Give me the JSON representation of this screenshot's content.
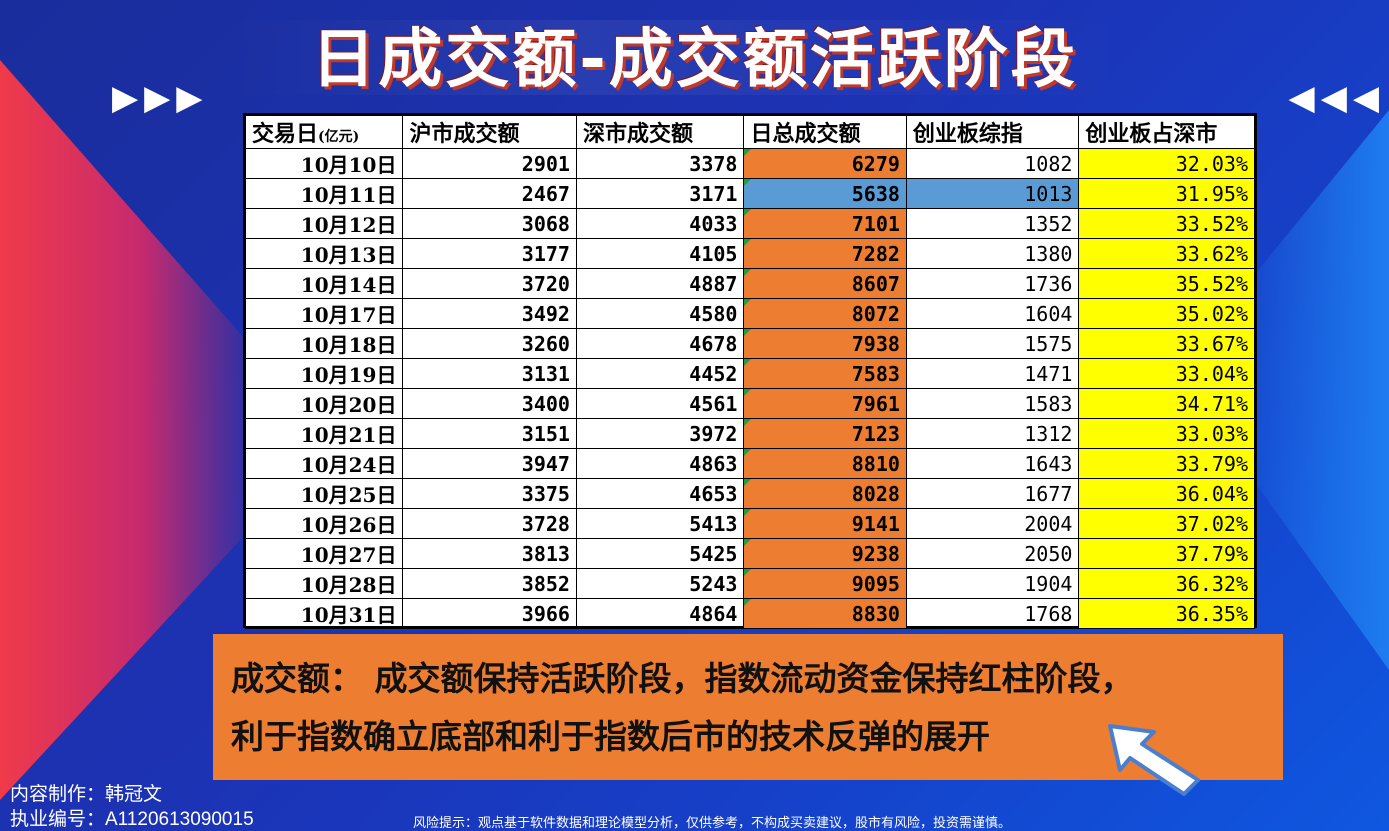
{
  "title": "日成交额-成交额活跃阶段",
  "decor": {
    "arrows_left": "▶▶▶",
    "arrows_right": "◀◀◀"
  },
  "table": {
    "headers": {
      "date": "交易日",
      "date_unit": "(亿元)",
      "sh": "沪市成交额",
      "sz": "深市成交额",
      "total": "日总成交额",
      "gem": "创业板综指",
      "ratio": "创业板占深市"
    },
    "rows": [
      {
        "date": "10月10日",
        "sh": "2901",
        "sz": "3378",
        "total": "6279",
        "gem": "1082",
        "ratio": "32.03%"
      },
      {
        "date": "10月11日",
        "sh": "2467",
        "sz": "3171",
        "total": "5638",
        "gem": "1013",
        "ratio": "31.95%"
      },
      {
        "date": "10月12日",
        "sh": "3068",
        "sz": "4033",
        "total": "7101",
        "gem": "1352",
        "ratio": "33.52%"
      },
      {
        "date": "10月13日",
        "sh": "3177",
        "sz": "4105",
        "total": "7282",
        "gem": "1380",
        "ratio": "33.62%"
      },
      {
        "date": "10月14日",
        "sh": "3720",
        "sz": "4887",
        "total": "8607",
        "gem": "1736",
        "ratio": "35.52%"
      },
      {
        "date": "10月17日",
        "sh": "3492",
        "sz": "4580",
        "total": "8072",
        "gem": "1604",
        "ratio": "35.02%"
      },
      {
        "date": "10月18日",
        "sh": "3260",
        "sz": "4678",
        "total": "7938",
        "gem": "1575",
        "ratio": "33.67%"
      },
      {
        "date": "10月19日",
        "sh": "3131",
        "sz": "4452",
        "total": "7583",
        "gem": "1471",
        "ratio": "33.04%"
      },
      {
        "date": "10月20日",
        "sh": "3400",
        "sz": "4561",
        "total": "7961",
        "gem": "1583",
        "ratio": "34.71%"
      },
      {
        "date": "10月21日",
        "sh": "3151",
        "sz": "3972",
        "total": "7123",
        "gem": "1312",
        "ratio": "33.03%"
      },
      {
        "date": "10月24日",
        "sh": "3947",
        "sz": "4863",
        "total": "8810",
        "gem": "1643",
        "ratio": "33.79%"
      },
      {
        "date": "10月25日",
        "sh": "3375",
        "sz": "4653",
        "total": "8028",
        "gem": "1677",
        "ratio": "36.04%"
      },
      {
        "date": "10月26日",
        "sh": "3728",
        "sz": "5413",
        "total": "9141",
        "gem": "2004",
        "ratio": "37.02%"
      },
      {
        "date": "10月27日",
        "sh": "3813",
        "sz": "5425",
        "total": "9238",
        "gem": "2050",
        "ratio": "37.79%"
      },
      {
        "date": "10月28日",
        "sh": "3852",
        "sz": "5243",
        "total": "9095",
        "gem": "1904",
        "ratio": "36.32%"
      },
      {
        "date": "10月31日",
        "sh": "3966",
        "sz": "4864",
        "total": "8830",
        "gem": "1768",
        "ratio": "36.35%"
      }
    ],
    "selected_row_index": 1,
    "colors": {
      "total_fill": "#ed7d31",
      "selected_fill": "#5b9bd5",
      "ratio_fill": "#ffff00"
    }
  },
  "callout": {
    "line1": "成交额： 成交额保持活跃阶段，指数流动资金保持红柱阶段，",
    "line2": "利于指数确立底部和利于指数后市的技术反弹的展开",
    "pointer_icon": "arrow-pointer-icon"
  },
  "credits": {
    "author": "内容制作：韩冠文",
    "license": "执业编号：A1120613090015"
  },
  "risk_notice": "风险提示：观点基于软件数据和理论模型分析，仅供参考，不构成买卖建议，股市有风险，投资需谨慎。"
}
